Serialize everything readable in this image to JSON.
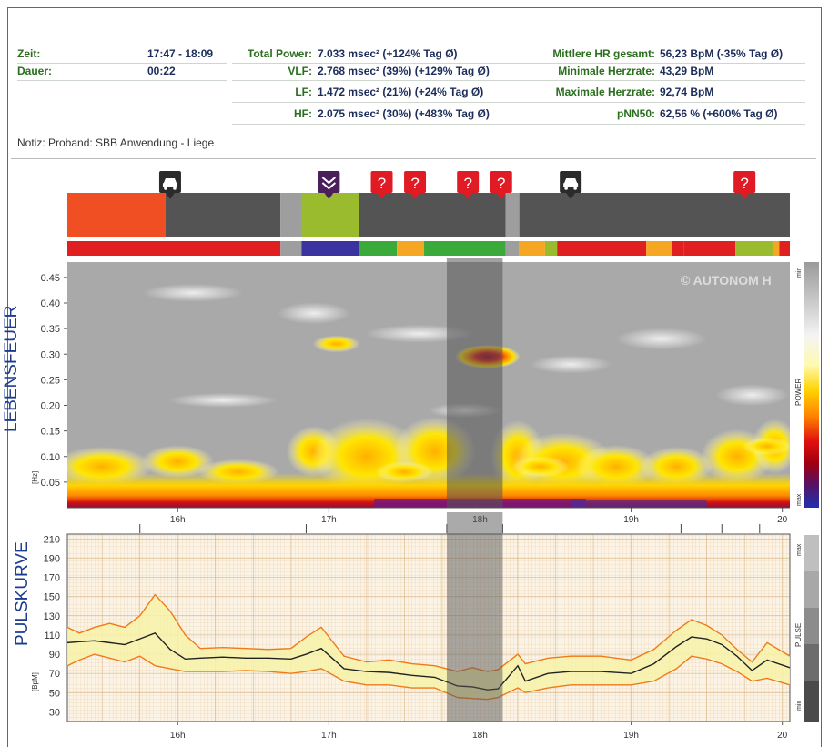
{
  "summary": {
    "left": [
      {
        "label": "Zeit:",
        "value": "17:47 - 18:09"
      },
      {
        "label": "Dauer:",
        "value": "00:22"
      }
    ],
    "middle": [
      {
        "label": "Total Power:",
        "value": "7.033 msec² (+124% Tag Ø)"
      },
      {
        "label": "VLF:",
        "value": "2.768 msec² (39%) (+129% Tag Ø)"
      },
      {
        "label": "LF:",
        "value": "1.472 msec² (21%) (+24% Tag Ø)"
      },
      {
        "label": "HF:",
        "value": "2.075 msec² (30%) (+483% Tag Ø)"
      }
    ],
    "right": [
      {
        "label": "Mittlere HR gesamt:",
        "value": "56,23 BpM (-35% Tag Ø)"
      },
      {
        "label": "Minimale Herzrate:",
        "value": "43,29 BpM"
      },
      {
        "label": "Maximale Herzrate:",
        "value": "92,74 BpM"
      },
      {
        "label": "pNN50:",
        "value": "62,56 % (+600% Tag Ø)"
      }
    ],
    "note": "Notiz: Proband: SBB Anwendung - Liege"
  },
  "colors": {
    "label_green": "#2a6e1e",
    "value_navy": "#1c2d5a",
    "title_blue": "#1b3c8f",
    "selection": "#555555"
  },
  "timeline": {
    "markers": [
      {
        "time": 15.95,
        "icon": "car-icon"
      },
      {
        "time": 17.0,
        "icon": "chevron-down-icon"
      },
      {
        "time": 17.35,
        "icon": "question-icon",
        "text": "?"
      },
      {
        "time": 17.57,
        "icon": "question-icon",
        "text": "?"
      },
      {
        "time": 17.92,
        "icon": "question-icon",
        "text": "?"
      },
      {
        "time": 18.14,
        "icon": "question-icon",
        "text": "?"
      },
      {
        "time": 18.6,
        "icon": "car-icon"
      },
      {
        "time": 19.75,
        "icon": "question-icon",
        "text": "?"
      }
    ],
    "activity_blocks": [
      {
        "start": 15.27,
        "end": 15.92,
        "color": "#f04e23"
      },
      {
        "start": 15.92,
        "end": 16.68,
        "color": "#545454"
      },
      {
        "start": 16.68,
        "end": 16.82,
        "color": "#9e9e9e"
      },
      {
        "start": 16.82,
        "end": 17.2,
        "color": "#9bbb2e"
      },
      {
        "start": 17.2,
        "end": 18.17,
        "color": "#545454"
      },
      {
        "start": 18.17,
        "end": 18.26,
        "color": "#9e9e9e"
      },
      {
        "start": 18.26,
        "end": 20.05,
        "color": "#545454"
      }
    ],
    "zone_blocks": [
      {
        "start": 15.27,
        "end": 16.68,
        "color": "#e02020"
      },
      {
        "start": 16.68,
        "end": 16.82,
        "color": "#9e9e9e"
      },
      {
        "start": 16.82,
        "end": 17.2,
        "color": "#3a33a0"
      },
      {
        "start": 17.2,
        "end": 17.45,
        "color": "#3aaa3a"
      },
      {
        "start": 17.45,
        "end": 17.63,
        "color": "#f5a623"
      },
      {
        "start": 17.63,
        "end": 18.17,
        "color": "#3aaa3a"
      },
      {
        "start": 18.17,
        "end": 18.26,
        "color": "#9e9e9e"
      },
      {
        "start": 18.26,
        "end": 18.43,
        "color": "#f5a623"
      },
      {
        "start": 18.43,
        "end": 18.51,
        "color": "#9bbb2e"
      },
      {
        "start": 18.51,
        "end": 19.1,
        "color": "#e02020"
      },
      {
        "start": 19.1,
        "end": 19.27,
        "color": "#f5a623"
      },
      {
        "start": 19.27,
        "end": 19.35,
        "color": "#e02020"
      },
      {
        "start": 19.35,
        "end": 19.69,
        "color": "#e02020"
      },
      {
        "start": 19.69,
        "end": 19.94,
        "color": "#9bbb2e"
      },
      {
        "start": 19.94,
        "end": 19.98,
        "color": "#f5a623"
      },
      {
        "start": 19.98,
        "end": 20.05,
        "color": "#e02020"
      }
    ]
  },
  "chart_data": [
    {
      "type": "heatmap",
      "title": "LEBENSFEUER",
      "ylabel": "[Hz]",
      "xlim": [
        15.27,
        20.05
      ],
      "ylim": [
        0.0,
        0.48
      ],
      "x_ticks": [
        16,
        17,
        18,
        19,
        20
      ],
      "x_tick_labels": [
        "16h",
        "17h",
        "18h",
        "19h",
        "20"
      ],
      "y_ticks": [
        0.05,
        0.1,
        0.15,
        0.2,
        0.25,
        0.3,
        0.35,
        0.4,
        0.45
      ],
      "y_tick_labels": [
        "0.05",
        "0.10",
        "0.15",
        "0.20",
        "0.25",
        "0.30",
        "0.35",
        "0.40",
        "0.45"
      ],
      "watermark": "© AUTONOM H",
      "colorbar": {
        "label": "POWER",
        "min_label": "min",
        "max_label": "max"
      },
      "selection": [
        17.78,
        18.15
      ],
      "hotspots": [
        {
          "x": 18.05,
          "y": 0.295,
          "level": 1.0
        },
        {
          "x": 17.05,
          "y": 0.32,
          "level": 0.55
        },
        {
          "x": 17.5,
          "y": 0.07,
          "level": 0.8
        },
        {
          "x": 18.4,
          "y": 0.08,
          "level": 0.8
        },
        {
          "x": 19.9,
          "y": 0.12,
          "level": 0.6
        }
      ]
    },
    {
      "type": "line",
      "title": "PULSKURVE",
      "ylabel": "[BpM]",
      "xlim": [
        15.27,
        20.05
      ],
      "ylim": [
        20,
        215
      ],
      "x_ticks": [
        16,
        17,
        18,
        19,
        20
      ],
      "x_tick_labels": [
        "16h",
        "17h",
        "18h",
        "19h",
        "20"
      ],
      "y_ticks": [
        30,
        50,
        70,
        90,
        110,
        130,
        150,
        170,
        190,
        210
      ],
      "y_tick_labels": [
        "30",
        "50",
        "70",
        "90",
        "110",
        "130",
        "150",
        "170",
        "190",
        "210"
      ],
      "colorbar": {
        "label": "PULSE",
        "min_label": "min",
        "max_label": "max"
      },
      "selection": [
        17.78,
        18.15
      ],
      "x": [
        15.27,
        15.35,
        15.45,
        15.55,
        15.65,
        15.75,
        15.85,
        15.95,
        16.05,
        16.15,
        16.3,
        16.45,
        16.6,
        16.75,
        16.85,
        16.95,
        17.1,
        17.25,
        17.4,
        17.55,
        17.7,
        17.85,
        17.95,
        18.05,
        18.12,
        18.25,
        18.3,
        18.45,
        18.6,
        18.8,
        19.0,
        19.15,
        19.3,
        19.4,
        19.5,
        19.6,
        19.7,
        19.8,
        19.9,
        20.05
      ],
      "series": [
        {
          "name": "max",
          "values": [
            118,
            112,
            118,
            122,
            118,
            130,
            152,
            135,
            110,
            96,
            97,
            96,
            95,
            96,
            108,
            118,
            88,
            82,
            84,
            80,
            78,
            72,
            76,
            72,
            74,
            90,
            80,
            86,
            88,
            88,
            84,
            95,
            115,
            126,
            120,
            110,
            95,
            82,
            102,
            88
          ]
        },
        {
          "name": "mean",
          "values": [
            102,
            103,
            104,
            102,
            100,
            106,
            112,
            95,
            85,
            86,
            87,
            86,
            86,
            85,
            90,
            96,
            75,
            72,
            71,
            68,
            66,
            57,
            56,
            53,
            54,
            78,
            62,
            70,
            72,
            72,
            70,
            80,
            98,
            108,
            106,
            100,
            88,
            73,
            84,
            76
          ]
        },
        {
          "name": "min",
          "values": [
            78,
            84,
            90,
            86,
            82,
            88,
            78,
            75,
            72,
            72,
            72,
            73,
            72,
            70,
            72,
            75,
            62,
            58,
            58,
            55,
            55,
            45,
            44,
            43,
            45,
            55,
            50,
            55,
            58,
            58,
            58,
            62,
            75,
            88,
            85,
            80,
            72,
            62,
            65,
            58
          ]
        }
      ]
    }
  ]
}
